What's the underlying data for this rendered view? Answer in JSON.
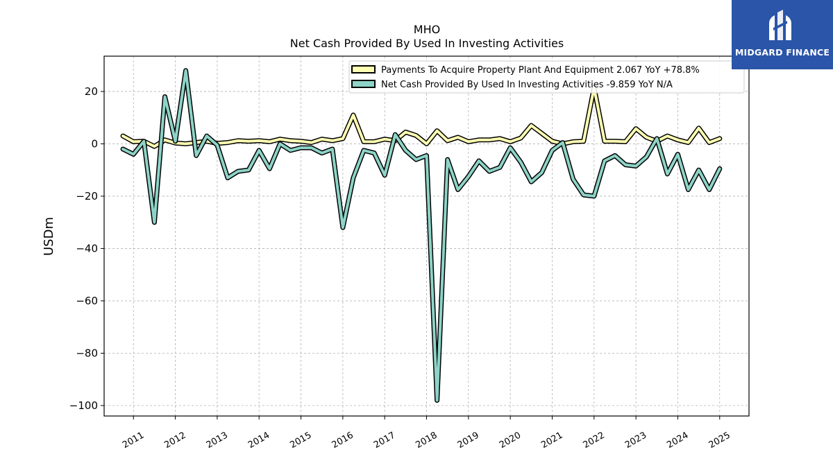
{
  "chart_data": {
    "type": "line",
    "title": "MHO",
    "subtitle": "Net Cash Provided By Used In Investing Activities",
    "ylabel": "USDm",
    "ylim": [
      -104,
      33.5
    ],
    "xlim": [
      2010.3,
      2025.7
    ],
    "yticks": [
      20,
      0,
      -20,
      -40,
      -60,
      -80,
      -100
    ],
    "ytick_labels": [
      "20",
      "0",
      "−20",
      "−40",
      "−60",
      "−80",
      "−100"
    ],
    "xticks": [
      2011,
      2012,
      2013,
      2014,
      2015,
      2016,
      2017,
      2018,
      2019,
      2020,
      2021,
      2022,
      2023,
      2024,
      2025
    ],
    "xtick_labels": [
      "2011",
      "2012",
      "2013",
      "2014",
      "2015",
      "2016",
      "2017",
      "2018",
      "2019",
      "2020",
      "2021",
      "2022",
      "2023",
      "2024",
      "2025"
    ],
    "grid": true,
    "legend_position": "top-right",
    "series": [
      {
        "name": "Payments To Acquire Property Plant And Equipment  2.067 YoY +78.8%",
        "color": "#ffffb3",
        "x": [
          2010.75,
          2011.0,
          2011.25,
          2011.5,
          2011.75,
          2012.0,
          2012.25,
          2012.5,
          2012.75,
          2013.0,
          2013.25,
          2013.5,
          2013.75,
          2014.0,
          2014.25,
          2014.5,
          2014.75,
          2015.0,
          2015.25,
          2015.5,
          2015.75,
          2016.0,
          2016.25,
          2016.5,
          2016.75,
          2017.0,
          2017.25,
          2017.5,
          2017.75,
          2018.0,
          2018.25,
          2018.5,
          2018.75,
          2019.0,
          2019.25,
          2019.5,
          2019.75,
          2020.0,
          2020.25,
          2020.5,
          2020.75,
          2021.0,
          2021.25,
          2021.5,
          2021.75,
          2022.0,
          2022.25,
          2022.5,
          2022.75,
          2023.0,
          2023.25,
          2023.5,
          2023.75,
          2024.0,
          2024.25,
          2024.5,
          2024.75,
          2025.0
        ],
        "values": [
          3.0,
          0.8,
          1.0,
          -1.0,
          1.5,
          0.3,
          0.0,
          0.5,
          1.0,
          0.2,
          0.5,
          1.2,
          1.0,
          1.2,
          0.8,
          1.8,
          1.2,
          1.0,
          0.5,
          1.8,
          1.2,
          2.0,
          11.0,
          0.8,
          0.8,
          1.8,
          1.2,
          4.5,
          3.2,
          0.0,
          5.0,
          1.2,
          2.5,
          0.8,
          1.5,
          1.5,
          2.0,
          0.8,
          2.2,
          7.0,
          4.0,
          1.0,
          0.0,
          0.8,
          1.0,
          21.5,
          1.0,
          1.0,
          0.8,
          5.8,
          2.5,
          1.0,
          3.0,
          1.5,
          0.5,
          6.0,
          0.5,
          2.0
        ]
      },
      {
        "name": "Net Cash Provided By Used In Investing Activities  -9.859 YoY N/A",
        "color": "#8dd3c7",
        "x": [
          2010.75,
          2011.0,
          2011.25,
          2011.5,
          2011.75,
          2012.0,
          2012.25,
          2012.5,
          2012.75,
          2013.0,
          2013.25,
          2013.5,
          2013.75,
          2014.0,
          2014.25,
          2014.5,
          2014.75,
          2015.0,
          2015.25,
          2015.5,
          2015.75,
          2016.0,
          2016.25,
          2016.5,
          2016.75,
          2017.0,
          2017.25,
          2017.5,
          2017.75,
          2018.0,
          2018.25,
          2018.5,
          2018.75,
          2019.0,
          2019.25,
          2019.5,
          2019.75,
          2020.0,
          2020.25,
          2020.5,
          2020.75,
          2021.0,
          2021.25,
          2021.5,
          2021.75,
          2022.0,
          2022.25,
          2022.5,
          2022.75,
          2023.0,
          2023.25,
          2023.5,
          2023.75,
          2024.0,
          2024.25,
          2024.5,
          2024.75,
          2025.0
        ],
        "values": [
          -2.0,
          -4.0,
          1.0,
          -30.0,
          18.0,
          1.0,
          28.0,
          -4.5,
          3.0,
          -0.5,
          -13.0,
          -10.5,
          -10.0,
          -2.5,
          -9.5,
          0.0,
          -2.5,
          -1.5,
          -1.5,
          -3.5,
          -2.0,
          -32.0,
          -13.0,
          -2.5,
          -3.5,
          -12.0,
          3.5,
          -2.5,
          -6.0,
          -4.5,
          -98.0,
          -6.0,
          -17.5,
          -12.5,
          -6.5,
          -10.5,
          -9.0,
          -1.5,
          -7.0,
          -14.5,
          -11.0,
          -2.5,
          0.5,
          -13.5,
          -19.5,
          -20.0,
          -6.5,
          -4.5,
          -8.0,
          -8.5,
          -5.0,
          2.0,
          -11.5,
          -4.0,
          -17.5,
          -10.0,
          -17.5,
          -9.5
        ]
      }
    ]
  },
  "brand": {
    "name": "MIDGARD FINANCE",
    "color": "#2a55a8"
  }
}
